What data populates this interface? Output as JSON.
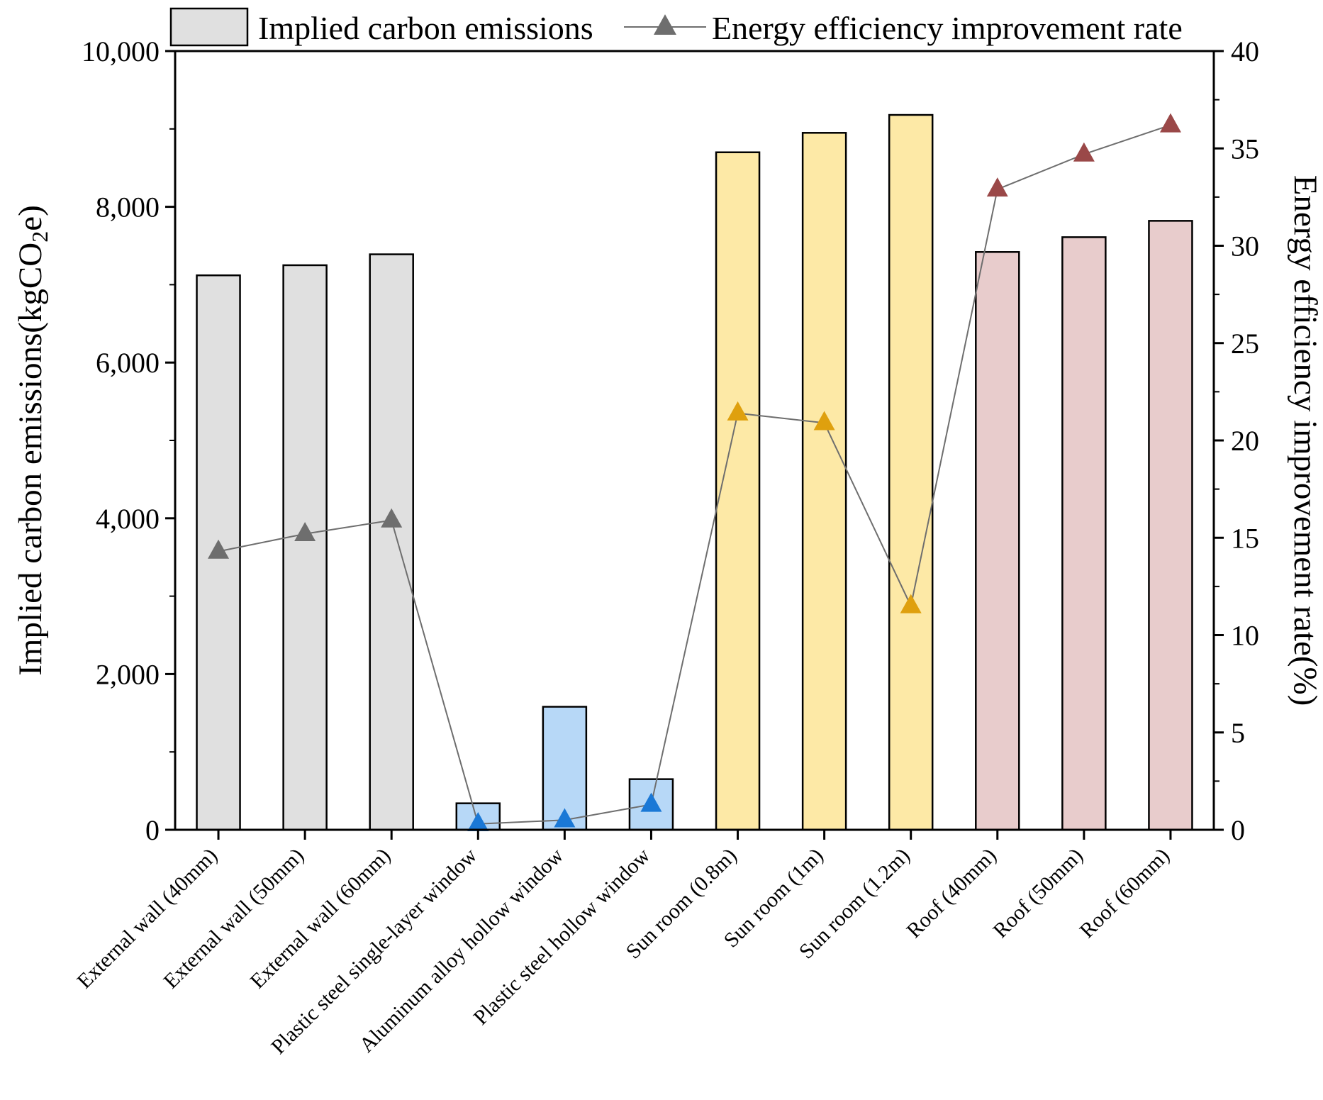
{
  "chart_data": {
    "type": "bar+line",
    "categories": [
      "External wall (40mm)",
      "External wall (50mm)",
      "External wall (60mm)",
      "Plastic steel single-layer window",
      "Aluminum alloy hollow window",
      "Plastic steel hollow window",
      "Sun room (0.8m)",
      "Sun room (1m)",
      "Sun room (1.2m)",
      "Roof (40mm)",
      "Roof (50mm)",
      "Roof (60mm)"
    ],
    "series": [
      {
        "name": "Implied carbon emissions",
        "type": "bar",
        "axis": "left",
        "values": [
          7120,
          7250,
          7390,
          340,
          1580,
          650,
          8700,
          8950,
          9180,
          7420,
          7610,
          7820
        ]
      },
      {
        "name": "Energy efficiency improvement rate",
        "type": "line",
        "axis": "right",
        "marker": "triangle",
        "values": [
          14.3,
          15.2,
          15.9,
          0.3,
          0.5,
          1.3,
          21.4,
          20.9,
          11.5,
          32.9,
          34.7,
          36.2
        ]
      }
    ],
    "group_colors": {
      "bar_fills": [
        "#e0e0e0",
        "#e0e0e0",
        "#e0e0e0",
        "#b7d8f7",
        "#b7d8f7",
        "#b7d8f7",
        "#fde9a6",
        "#fde9a6",
        "#fde9a6",
        "#e8cccc",
        "#e8cccc",
        "#e8cccc"
      ],
      "marker_fills": [
        "#6e6e6e",
        "#6e6e6e",
        "#6e6e6e",
        "#1a78d6",
        "#1a78d6",
        "#1a78d6",
        "#dfa00e",
        "#dfa00e",
        "#dfa00e",
        "#9a4848",
        "#9a4848",
        "#9a4848"
      ],
      "line_color": "#6e6e6e",
      "legend_bar_fill": "#e0e0e0",
      "legend_marker_fill": "#6e6e6e"
    },
    "y_left": {
      "label_pre": "Implied carbon emissions(kgCO",
      "label_sub": "2",
      "label_post": "e)",
      "lim": [
        0,
        10000
      ],
      "ticks": [
        0,
        2000,
        4000,
        6000,
        8000,
        10000
      ],
      "tick_labels": [
        "0",
        "2,000",
        "4,000",
        "6,000",
        "8,000",
        "10,000"
      ]
    },
    "y_right": {
      "label": "Energy efficiency improvement rate(%)",
      "lim": [
        0,
        40
      ],
      "ticks": [
        0,
        5,
        10,
        15,
        20,
        25,
        30,
        35,
        40
      ],
      "tick_labels": [
        "0",
        "5",
        "10",
        "15",
        "20",
        "25",
        "30",
        "35",
        "40"
      ]
    },
    "legend": {
      "position": "top",
      "entries": [
        "Implied carbon emissions",
        "Energy efficiency improvement rate"
      ]
    },
    "grid": false
  }
}
